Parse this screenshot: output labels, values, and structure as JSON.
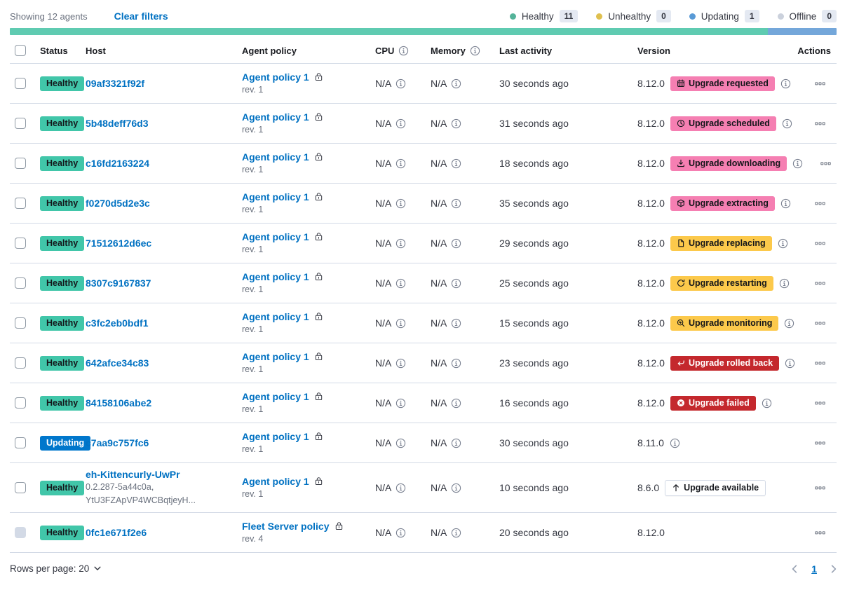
{
  "toolbar": {
    "showing": "Showing 12 agents",
    "clear_filters": "Clear filters",
    "legend": [
      {
        "label": "Healthy",
        "count": "11",
        "color": "#54B399"
      },
      {
        "label": "Unhealthy",
        "count": "0",
        "color": "#DFC04F"
      },
      {
        "label": "Updating",
        "count": "1",
        "color": "#599AD6"
      },
      {
        "label": "Offline",
        "count": "0",
        "color": "#CBD1DC"
      }
    ]
  },
  "health_bar": {
    "segments": [
      {
        "color": "#5FCBB1",
        "ratio": 11
      },
      {
        "color": "#74A7DA",
        "ratio": 1
      }
    ]
  },
  "table": {
    "headers": {
      "status": "Status",
      "host": "Host",
      "policy": "Agent policy",
      "cpu": "CPU",
      "memory": "Memory",
      "activity": "Last activity",
      "version": "Version",
      "actions": "Actions"
    },
    "rows": [
      {
        "status": {
          "label": "Healthy",
          "type": "healthy"
        },
        "host": {
          "name": "09af3321f92f"
        },
        "policy": {
          "name": "Agent policy 1",
          "rev": "rev. 1",
          "locked": false
        },
        "cpu": "N/A",
        "memory": "N/A",
        "activity": "30 seconds ago",
        "version": "8.12.0",
        "upgrade": {
          "label": "Upgrade requested",
          "icon": "calendar-icon",
          "style": "pink"
        },
        "info_icon": true,
        "checkbox_disabled": false
      },
      {
        "status": {
          "label": "Healthy",
          "type": "healthy"
        },
        "host": {
          "name": "5b48deff76d3"
        },
        "policy": {
          "name": "Agent policy 1",
          "rev": "rev. 1",
          "locked": false
        },
        "cpu": "N/A",
        "memory": "N/A",
        "activity": "31 seconds ago",
        "version": "8.12.0",
        "upgrade": {
          "label": "Upgrade scheduled",
          "icon": "clock-icon",
          "style": "pink"
        },
        "info_icon": true,
        "checkbox_disabled": false
      },
      {
        "status": {
          "label": "Healthy",
          "type": "healthy"
        },
        "host": {
          "name": "c16fd2163224"
        },
        "policy": {
          "name": "Agent policy 1",
          "rev": "rev. 1",
          "locked": false
        },
        "cpu": "N/A",
        "memory": "N/A",
        "activity": "18 seconds ago",
        "version": "8.12.0",
        "upgrade": {
          "label": "Upgrade downloading",
          "icon": "download-icon",
          "style": "pink"
        },
        "info_icon": true,
        "checkbox_disabled": false
      },
      {
        "status": {
          "label": "Healthy",
          "type": "healthy"
        },
        "host": {
          "name": "f0270d5d2e3c"
        },
        "policy": {
          "name": "Agent policy 1",
          "rev": "rev. 1",
          "locked": false
        },
        "cpu": "N/A",
        "memory": "N/A",
        "activity": "35 seconds ago",
        "version": "8.12.0",
        "upgrade": {
          "label": "Upgrade extracting",
          "icon": "package-icon",
          "style": "pink"
        },
        "info_icon": true,
        "checkbox_disabled": false
      },
      {
        "status": {
          "label": "Healthy",
          "type": "healthy"
        },
        "host": {
          "name": "71512612d6ec"
        },
        "policy": {
          "name": "Agent policy 1",
          "rev": "rev. 1",
          "locked": false
        },
        "cpu": "N/A",
        "memory": "N/A",
        "activity": "29 seconds ago",
        "version": "8.12.0",
        "upgrade": {
          "label": "Upgrade replacing",
          "icon": "document-icon",
          "style": "yellow"
        },
        "info_icon": true,
        "checkbox_disabled": false
      },
      {
        "status": {
          "label": "Healthy",
          "type": "healthy"
        },
        "host": {
          "name": "8307c9167837"
        },
        "policy": {
          "name": "Agent policy 1",
          "rev": "rev. 1",
          "locked": false
        },
        "cpu": "N/A",
        "memory": "N/A",
        "activity": "25 seconds ago",
        "version": "8.12.0",
        "upgrade": {
          "label": "Upgrade restarting",
          "icon": "refresh-icon",
          "style": "yellow"
        },
        "info_icon": true,
        "checkbox_disabled": false
      },
      {
        "status": {
          "label": "Healthy",
          "type": "healthy"
        },
        "host": {
          "name": "c3fc2eb0bdf1"
        },
        "policy": {
          "name": "Agent policy 1",
          "rev": "rev. 1",
          "locked": false
        },
        "cpu": "N/A",
        "memory": "N/A",
        "activity": "15 seconds ago",
        "version": "8.12.0",
        "upgrade": {
          "label": "Upgrade monitoring",
          "icon": "inspect-icon",
          "style": "yellow"
        },
        "info_icon": true,
        "checkbox_disabled": false
      },
      {
        "status": {
          "label": "Healthy",
          "type": "healthy"
        },
        "host": {
          "name": "642afce34c83"
        },
        "policy": {
          "name": "Agent policy 1",
          "rev": "rev. 1",
          "locked": false
        },
        "cpu": "N/A",
        "memory": "N/A",
        "activity": "23 seconds ago",
        "version": "8.12.0",
        "upgrade": {
          "label": "Upgrade rolled back",
          "icon": "return-icon",
          "style": "red"
        },
        "info_icon": true,
        "checkbox_disabled": false
      },
      {
        "status": {
          "label": "Healthy",
          "type": "healthy"
        },
        "host": {
          "name": "84158106abe2"
        },
        "policy": {
          "name": "Agent policy 1",
          "rev": "rev. 1",
          "locked": false
        },
        "cpu": "N/A",
        "memory": "N/A",
        "activity": "16 seconds ago",
        "version": "8.12.0",
        "upgrade": {
          "label": "Upgrade failed",
          "icon": "error-icon",
          "style": "red"
        },
        "info_icon": true,
        "checkbox_disabled": false
      },
      {
        "status": {
          "label": "Updating",
          "type": "updating"
        },
        "host": {
          "name": "c7aa9c757fc6"
        },
        "policy": {
          "name": "Agent policy 1",
          "rev": "rev. 1",
          "locked": false
        },
        "cpu": "N/A",
        "memory": "N/A",
        "activity": "30 seconds ago",
        "version": "8.11.0",
        "upgrade": null,
        "info_icon": true,
        "checkbox_disabled": false
      },
      {
        "status": {
          "label": "Healthy",
          "type": "healthy"
        },
        "host": {
          "name": "eh-Kittencurly-UwPr",
          "sublines": [
            "0.2.287-5a44c0a,",
            "YtU3FZApVP4WCBqtjeyH..."
          ]
        },
        "policy": {
          "name": "Agent policy 1",
          "rev": "rev. 1",
          "locked": false
        },
        "cpu": "N/A",
        "memory": "N/A",
        "activity": "10 seconds ago",
        "version": "8.6.0",
        "upgrade": {
          "label": "Upgrade available",
          "icon": "arrow-up-icon",
          "style": "outline"
        },
        "info_icon": false,
        "checkbox_disabled": false
      },
      {
        "status": {
          "label": "Healthy",
          "type": "healthy"
        },
        "host": {
          "name": "0fc1e671f2e6"
        },
        "policy": {
          "name": "Fleet Server policy",
          "rev": "rev. 4",
          "locked": true
        },
        "cpu": "N/A",
        "memory": "N/A",
        "activity": "20 seconds ago",
        "version": "8.12.0",
        "upgrade": null,
        "info_icon": false,
        "checkbox_disabled": true
      }
    ]
  },
  "footer": {
    "rows_per_page": "Rows per page: 20",
    "page": "1"
  }
}
